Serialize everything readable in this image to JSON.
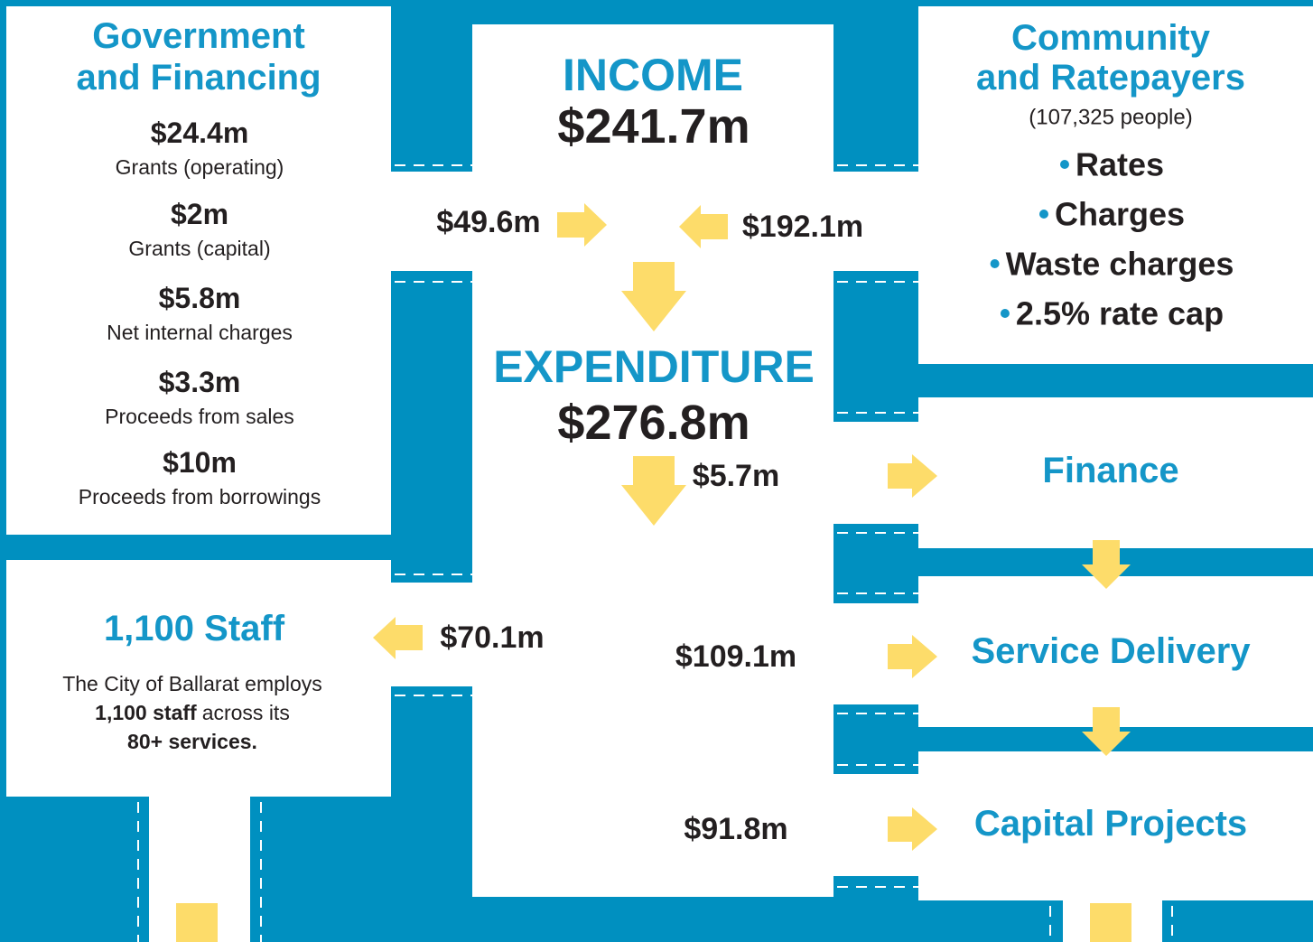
{
  "government": {
    "title": [
      "Government",
      "and Financing"
    ],
    "items": [
      {
        "amount": "$24.4m",
        "label": "Grants (operating)"
      },
      {
        "amount": "$2m",
        "label": "Grants (capital)"
      },
      {
        "amount": "$5.8m",
        "label": "Net internal charges"
      },
      {
        "amount": "$3.3m",
        "label": "Proceeds from sales"
      },
      {
        "amount": "$10m",
        "label": "Proceeds from borrowings"
      }
    ]
  },
  "income": {
    "label": "INCOME",
    "amount": "$241.7m"
  },
  "income_flows": {
    "government": "$49.6m",
    "community": "$192.1m"
  },
  "community": {
    "title": [
      "Community",
      "and Ratepayers"
    ],
    "note": "(107,325 people)",
    "bullets": [
      "Rates",
      "Charges",
      "Waste charges",
      "2.5% rate cap"
    ]
  },
  "expenditure": {
    "label": "EXPENDITURE",
    "amount": "$276.8m"
  },
  "staff": {
    "title": "1,100 Staff",
    "flow": "$70.1m",
    "description": [
      "The City of Ballarat employs",
      "1,100 staff",
      "across its",
      "80+ services."
    ]
  },
  "outputs": [
    {
      "amount": "$5.7m",
      "label": "Finance"
    },
    {
      "amount": "$109.1m",
      "label": "Service Delivery"
    },
    {
      "amount": "$91.8m",
      "label": "Capital Projects"
    }
  ]
}
